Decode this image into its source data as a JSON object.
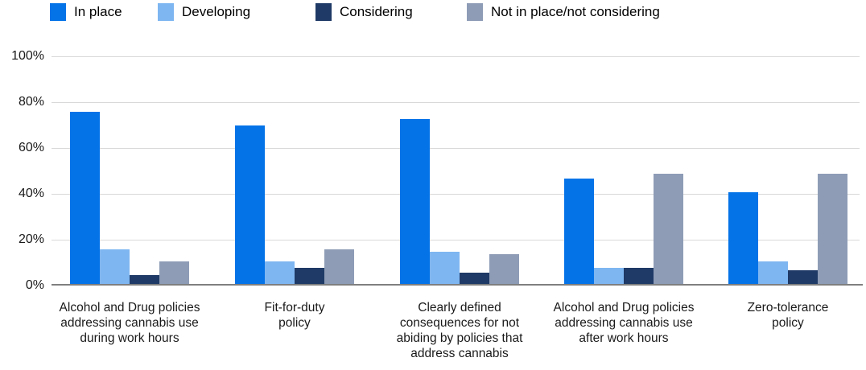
{
  "chart_data": {
    "type": "bar",
    "title": "",
    "categories": [
      "Alcohol and Drug policies addressing cannabis use during work hours",
      "Fit-for-duty policy",
      "Clearly defined consequences for not abiding by policies that address cannabis",
      "Alcohol and Drug policies addressing cannabis use after work hours",
      "Zero-tolerance policy"
    ],
    "series": [
      {
        "name": "In place",
        "color": "#0473e8",
        "values": [
          75,
          69,
          72,
          46,
          40
        ]
      },
      {
        "name": "Developing",
        "color": "#7eb6f1",
        "values": [
          15,
          10,
          14,
          7,
          10
        ]
      },
      {
        "name": "Considering",
        "color": "#1f3a66",
        "values": [
          4,
          7,
          5,
          7,
          6
        ]
      },
      {
        "name": "Not in place/not considering",
        "color": "#8e9cb6",
        "values": [
          10,
          15,
          13,
          48,
          48
        ]
      }
    ],
    "y_ticks": [
      {
        "label": "0%",
        "value": 0
      },
      {
        "label": "20%",
        "value": 20
      },
      {
        "label": "40%",
        "value": 40
      },
      {
        "label": "60%",
        "value": 60
      },
      {
        "label": "80%",
        "value": 80
      },
      {
        "label": "100%",
        "value": 100
      }
    ],
    "ylim": [
      0,
      100
    ],
    "grid": true,
    "legend_position": "top",
    "axis_color": "#7f7f7f",
    "gridline_color": "#d9d9d9"
  }
}
